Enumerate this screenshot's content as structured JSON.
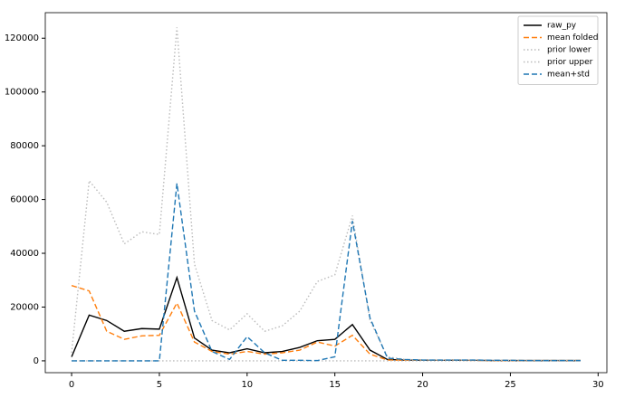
{
  "chart_data": {
    "type": "line",
    "x": [
      0,
      1,
      2,
      3,
      4,
      5,
      6,
      7,
      8,
      9,
      10,
      11,
      12,
      13,
      14,
      15,
      16,
      17,
      18,
      19,
      20,
      21,
      22,
      23,
      24,
      25,
      26,
      27,
      28,
      29
    ],
    "series": [
      {
        "name": "raw_py",
        "color": "#000000",
        "linestyle": "solid",
        "values": [
          1500,
          17000,
          15000,
          11000,
          12000,
          11800,
          31000,
          8500,
          4000,
          3000,
          4500,
          3000,
          3500,
          5000,
          7500,
          8000,
          13500,
          4000,
          500,
          300,
          200,
          200,
          200,
          200,
          100,
          100,
          100,
          100,
          100,
          100
        ]
      },
      {
        "name": "mean folded",
        "color": "#ff7f0e",
        "linestyle": "dashed",
        "values": [
          28000,
          26000,
          11000,
          8000,
          9300,
          9500,
          21500,
          7000,
          3500,
          2500,
          3500,
          2500,
          3000,
          4000,
          7000,
          5500,
          9500,
          2500,
          300,
          200,
          200,
          200,
          200,
          150,
          100,
          100,
          100,
          100,
          100,
          100
        ]
      },
      {
        "name": "prior lower",
        "color": "#bbbbbb",
        "linestyle": "dotted",
        "values": [
          0,
          0,
          0,
          0,
          0,
          0,
          0,
          0,
          0,
          0,
          0,
          0,
          0,
          0,
          0,
          0,
          0,
          0,
          0,
          0,
          0,
          0,
          0,
          0,
          0,
          0,
          0,
          0,
          0,
          0
        ]
      },
      {
        "name": "prior upper",
        "color": "#bbbbbb",
        "linestyle": "dotted",
        "values": [
          3000,
          67000,
          59000,
          43500,
          48000,
          47000,
          124000,
          36000,
          15000,
          11500,
          17500,
          11000,
          13000,
          18500,
          29500,
          32000,
          54000,
          15000,
          1500,
          500,
          300,
          300,
          300,
          300,
          200,
          200,
          200,
          200,
          200,
          200
        ]
      },
      {
        "name": "mean+std",
        "color": "#1f77b4",
        "linestyle": "dashed",
        "values": [
          0,
          0,
          0,
          0,
          0,
          0,
          66000,
          18500,
          3500,
          500,
          9000,
          3000,
          200,
          200,
          100,
          1500,
          52000,
          16000,
          1000,
          500,
          300,
          300,
          300,
          300,
          200,
          200,
          100,
          100,
          100,
          100
        ]
      }
    ],
    "xlim": [
      -1.5,
      30.5
    ],
    "ylim": [
      -4400,
      129500
    ],
    "xticks": [
      0,
      5,
      10,
      15,
      20,
      25,
      30
    ],
    "yticks": [
      0,
      20000,
      40000,
      60000,
      80000,
      100000,
      120000
    ],
    "legend": "upper right",
    "grid": false
  }
}
